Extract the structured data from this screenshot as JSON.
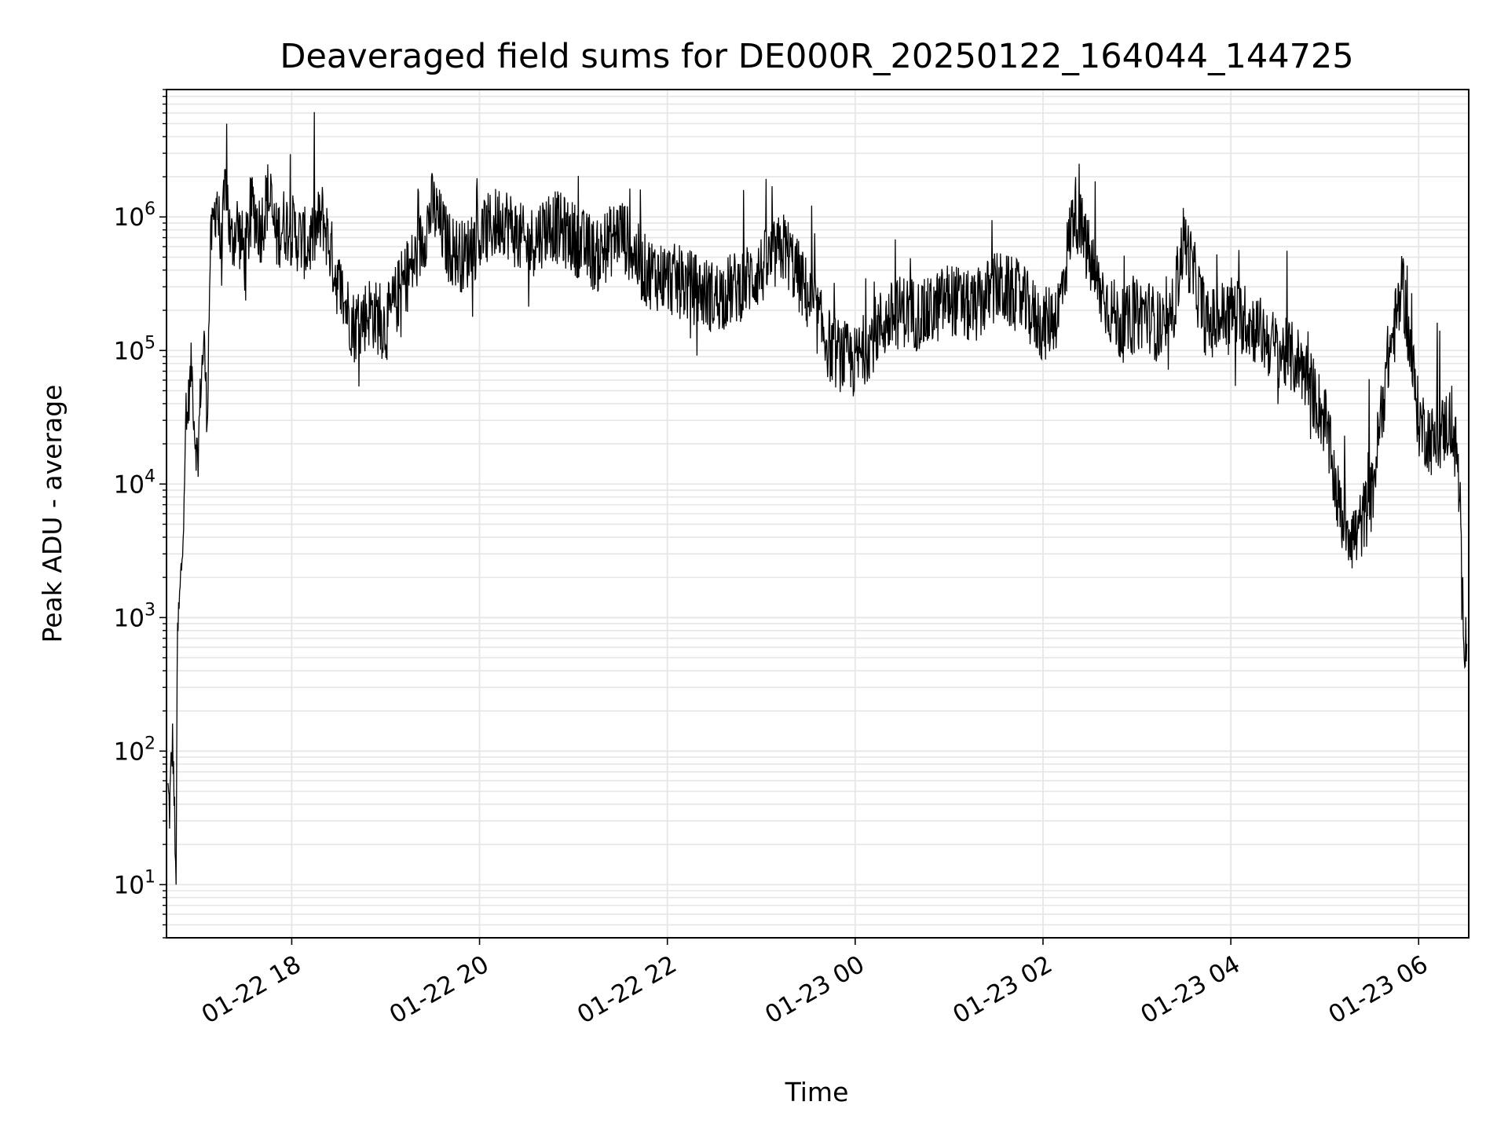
{
  "chart_data": {
    "type": "line",
    "title": "Deaveraged field sums for DE000R_20250122_164044_144725",
    "xlabel": "Time",
    "ylabel": "Peak ADU - average",
    "yscale": "log",
    "ylim": [
      4,
      9000000
    ],
    "xlim": [
      "01-22 16:40",
      "01-23 06:32"
    ],
    "grid": true,
    "line_color": "#000000",
    "grid_color": "#e6e6e6",
    "x_ticks": [
      {
        "t": "01-22 18:00",
        "label": "01-22 18"
      },
      {
        "t": "01-22 20:00",
        "label": "01-22 20"
      },
      {
        "t": "01-22 22:00",
        "label": "01-22 22"
      },
      {
        "t": "01-23 00:00",
        "label": "01-23 00"
      },
      {
        "t": "01-23 02:00",
        "label": "01-23 02"
      },
      {
        "t": "01-23 04:00",
        "label": "01-23 04"
      },
      {
        "t": "01-23 06:00",
        "label": "01-23 06"
      }
    ],
    "y_ticks": [
      {
        "value": 10,
        "base": "10",
        "exp": "1"
      },
      {
        "value": 100,
        "base": "10",
        "exp": "2"
      },
      {
        "value": 1000,
        "base": "10",
        "exp": "3"
      },
      {
        "value": 10000,
        "base": "10",
        "exp": "4"
      },
      {
        "value": 100000,
        "base": "10",
        "exp": "5"
      },
      {
        "value": 1000000,
        "base": "10",
        "exp": "6"
      }
    ],
    "series": [
      {
        "x": [
          "01-22 16:41",
          "01-22 16:42",
          "01-22 16:43",
          "01-22 16:44",
          "01-22 16:45",
          "01-22 16:46",
          "01-22 16:47",
          "01-22 16:48",
          "01-22 16:50",
          "01-22 16:52",
          "01-22 16:54",
          "01-22 16:56",
          "01-22 16:58",
          "01-22 17:00",
          "01-22 17:02",
          "01-22 17:04",
          "01-22 17:06",
          "01-22 17:08",
          "01-22 17:10",
          "01-22 17:12",
          "01-22 17:15",
          "01-22 17:18",
          "01-22 17:21",
          "01-22 17:25",
          "01-22 17:30",
          "01-22 17:35",
          "01-22 17:40",
          "01-22 17:45",
          "01-22 17:50",
          "01-22 17:55",
          "01-22 18:00",
          "01-22 18:10",
          "01-22 18:20",
          "01-22 18:30",
          "01-22 18:40",
          "01-22 18:50",
          "01-22 19:00",
          "01-22 19:10",
          "01-22 19:20",
          "01-22 19:30",
          "01-22 19:40",
          "01-22 19:50",
          "01-22 20:00",
          "01-22 20:15",
          "01-22 20:30",
          "01-22 20:45",
          "01-22 21:00",
          "01-22 21:15",
          "01-22 21:30",
          "01-22 21:45",
          "01-22 22:00",
          "01-22 22:15",
          "01-22 22:30",
          "01-22 22:45",
          "01-22 23:00",
          "01-22 23:15",
          "01-22 23:30",
          "01-22 23:45",
          "01-23 00:00",
          "01-23 00:15",
          "01-23 00:30",
          "01-23 00:45",
          "01-23 01:00",
          "01-23 01:15",
          "01-23 01:30",
          "01-23 01:45",
          "01-23 02:00",
          "01-23 02:10",
          "01-23 02:20",
          "01-23 02:35",
          "01-23 02:50",
          "01-23 03:05",
          "01-23 03:20",
          "01-23 03:30",
          "01-23 03:45",
          "01-23 04:00",
          "01-23 04:15",
          "01-23 04:30",
          "01-23 04:45",
          "01-23 05:00",
          "01-23 05:10",
          "01-23 05:20",
          "01-23 05:30",
          "01-23 05:40",
          "01-23 05:50",
          "01-23 06:00",
          "01-23 06:10",
          "01-23 06:20",
          "01-23 06:25",
          "01-23 06:28",
          "01-23 06:30",
          "01-23 06:31"
        ],
        "y": [
          50,
          35,
          80,
          120,
          40,
          8,
          700,
          1100,
          3000,
          20000,
          40000,
          80000,
          25000,
          15000,
          60000,
          120000,
          30000,
          600000,
          900000,
          1500000,
          500000,
          2000000,
          600000,
          900000,
          500000,
          1200000,
          800000,
          1500000,
          700000,
          900000,
          800000,
          600000,
          1000000,
          300000,
          150000,
          200000,
          150000,
          300000,
          500000,
          1200000,
          600000,
          500000,
          700000,
          1000000,
          600000,
          900000,
          700000,
          500000,
          800000,
          400000,
          350000,
          300000,
          250000,
          300000,
          400000,
          600000,
          250000,
          100000,
          80000,
          150000,
          200000,
          180000,
          250000,
          200000,
          300000,
          250000,
          150000,
          200000,
          1200000,
          300000,
          150000,
          200000,
          120000,
          700000,
          150000,
          200000,
          150000,
          100000,
          80000,
          30000,
          6000,
          4000,
          8000,
          80000,
          300000,
          30000,
          20000,
          30000,
          15000,
          1200,
          700,
          600
        ]
      }
    ]
  }
}
